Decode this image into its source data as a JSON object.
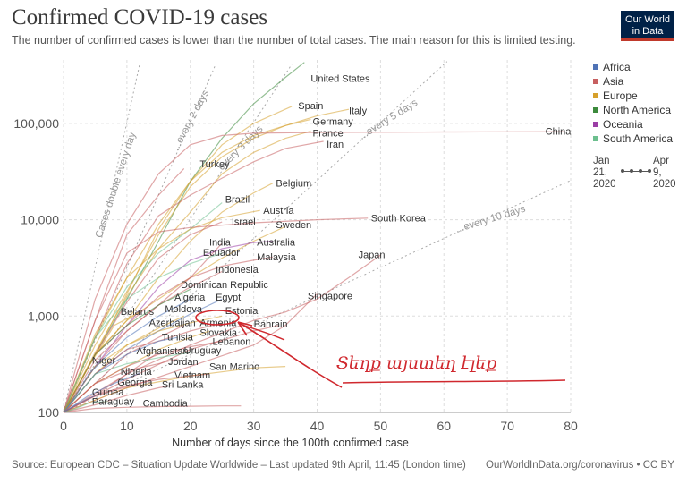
{
  "header": {
    "title": "Confirmed COVID-19 cases",
    "subtitle": "The number of confirmed cases is lower than the number of total cases. The main reason for this is limited testing."
  },
  "logo": {
    "line1": "Our World",
    "line2": "in Data"
  },
  "footer": {
    "source": "Source: European CDC – Situation Update Worldwide – Last updated 9th April, 11:45 (London time)",
    "link": "OurWorldInData.org/coronavirus • CC BY"
  },
  "legend": [
    {
      "label": "Africa",
      "color": "#4f73b6"
    },
    {
      "label": "Asia",
      "color": "#c75f60"
    },
    {
      "label": "Europe",
      "color": "#d6a02c"
    },
    {
      "label": "North America",
      "color": "#3c8a3c"
    },
    {
      "label": "Oceania",
      "color": "#9b3ea5"
    },
    {
      "label": "South America",
      "color": "#6cbf8e"
    }
  ],
  "timeline": {
    "start": "Jan\n21,\n2020",
    "end": "Apr\n9,\n2020"
  },
  "handwriting": "Տեղք այստեղ էլեք",
  "chart_data": {
    "type": "line",
    "title": "Confirmed COVID-19 cases",
    "xlabel": "Number of days since the 100th confirmed case",
    "ylabel": "",
    "xlim": [
      0,
      80
    ],
    "ylim": [
      100,
      300000
    ],
    "y_scale": "log",
    "x_ticks": [
      0,
      10,
      20,
      30,
      40,
      50,
      60,
      70,
      80
    ],
    "y_ticks": [
      100,
      1000,
      10000,
      100000
    ],
    "y_tick_labels": [
      "100",
      "1,000",
      "10,000",
      "100,000"
    ],
    "grid": true,
    "legend_position": "right",
    "reference_lines": [
      {
        "label": "Cases double every day",
        "doubling_days": 1
      },
      {
        "label": "...every 2 days",
        "doubling_days": 2
      },
      {
        "label": "every 3 days",
        "doubling_days": 3
      },
      {
        "label": "...every 5 days",
        "doubling_days": 5
      },
      {
        "label": "...every 10 days",
        "doubling_days": 10
      }
    ],
    "series": [
      {
        "name": "United States",
        "region": "North America",
        "x": [
          0,
          5,
          10,
          15,
          20,
          25,
          30,
          35,
          38
        ],
        "y": [
          100,
          400,
          1500,
          6000,
          25000,
          70000,
          160000,
          300000,
          430000
        ]
      },
      {
        "name": "Spain",
        "region": "Europe",
        "x": [
          0,
          5,
          10,
          15,
          20,
          25,
          30,
          36
        ],
        "y": [
          100,
          400,
          1700,
          8000,
          25000,
          60000,
          100000,
          150000
        ]
      },
      {
        "name": "Italy",
        "region": "Europe",
        "x": [
          0,
          5,
          10,
          15,
          20,
          25,
          30,
          35,
          40,
          45
        ],
        "y": [
          100,
          650,
          2500,
          9000,
          25000,
          50000,
          75000,
          95000,
          120000,
          140000
        ]
      },
      {
        "name": "Germany",
        "region": "Europe",
        "x": [
          0,
          5,
          10,
          15,
          20,
          25,
          30,
          35,
          39
        ],
        "y": [
          100,
          500,
          1800,
          7000,
          22000,
          45000,
          70000,
          95000,
          110000
        ]
      },
      {
        "name": "France",
        "region": "Europe",
        "x": [
          0,
          5,
          10,
          15,
          20,
          25,
          30,
          35,
          39
        ],
        "y": [
          100,
          420,
          1600,
          5000,
          12000,
          30000,
          50000,
          70000,
          83000
        ]
      },
      {
        "name": "Iran",
        "region": "Asia",
        "x": [
          0,
          5,
          10,
          15,
          20,
          25,
          30,
          35,
          41
        ],
        "y": [
          100,
          600,
          3500,
          11000,
          18000,
          27000,
          40000,
          55000,
          65000
        ]
      },
      {
        "name": "China",
        "region": "Asia",
        "x": [
          0,
          5,
          10,
          15,
          20,
          25,
          30,
          40,
          50,
          60,
          70,
          79
        ],
        "y": [
          100,
          1500,
          9000,
          30000,
          60000,
          75000,
          79000,
          80500,
          81000,
          81500,
          81800,
          82000
        ]
      },
      {
        "name": "Turkey",
        "region": "Asia",
        "x": [
          0,
          5,
          10,
          15,
          19
        ],
        "y": [
          100,
          900,
          7000,
          18000,
          34000
        ]
      },
      {
        "name": "Belgium",
        "region": "Europe",
        "x": [
          0,
          5,
          10,
          15,
          20,
          25,
          30,
          33
        ],
        "y": [
          100,
          400,
          900,
          2500,
          6000,
          12000,
          19000,
          24000
        ]
      },
      {
        "name": "Brazil",
        "region": "South America",
        "x": [
          0,
          5,
          10,
          15,
          20,
          25
        ],
        "y": [
          100,
          600,
          2000,
          4500,
          8000,
          15000
        ]
      },
      {
        "name": "Austria",
        "region": "Europe",
        "x": [
          0,
          5,
          10,
          15,
          20,
          25,
          31
        ],
        "y": [
          100,
          600,
          2500,
          5000,
          8000,
          10500,
          12500
        ]
      },
      {
        "name": "Israel",
        "region": "Asia",
        "x": [
          0,
          5,
          10,
          15,
          20,
          25
        ],
        "y": [
          100,
          400,
          1400,
          4000,
          7000,
          9500
        ]
      },
      {
        "name": "Sweden",
        "region": "Europe",
        "x": [
          0,
          5,
          10,
          15,
          20,
          25,
          30,
          35
        ],
        "y": [
          100,
          400,
          900,
          1500,
          2500,
          4000,
          6000,
          8500
        ]
      },
      {
        "name": "South Korea",
        "region": "Asia",
        "x": [
          0,
          5,
          10,
          15,
          20,
          30,
          40,
          48
        ],
        "y": [
          100,
          900,
          4500,
          7500,
          8300,
          9300,
          10000,
          10400
        ]
      },
      {
        "name": "India",
        "region": "Asia",
        "x": [
          0,
          5,
          10,
          15,
          20,
          25
        ],
        "y": [
          100,
          300,
          700,
          1300,
          2500,
          5700
        ]
      },
      {
        "name": "Australia",
        "region": "Oceania",
        "x": [
          0,
          5,
          10,
          15,
          20,
          25,
          30,
          33
        ],
        "y": [
          100,
          300,
          800,
          2000,
          3800,
          5000,
          5800,
          6000
        ]
      },
      {
        "name": "Ecuador",
        "region": "South America",
        "x": [
          0,
          5,
          10,
          15,
          20,
          25
        ],
        "y": [
          100,
          600,
          1500,
          2500,
          3500,
          4500
        ]
      },
      {
        "name": "Malaysia",
        "region": "Asia",
        "x": [
          0,
          5,
          10,
          15,
          20,
          25,
          30,
          33
        ],
        "y": [
          100,
          400,
          800,
          1600,
          2500,
          3300,
          3800,
          4100
        ]
      },
      {
        "name": "Indonesia",
        "region": "Asia",
        "x": [
          0,
          5,
          10,
          15,
          20,
          25
        ],
        "y": [
          100,
          350,
          700,
          1300,
          2000,
          2900
        ]
      },
      {
        "name": "Japan",
        "region": "Asia",
        "x": [
          0,
          10,
          20,
          30,
          35,
          40,
          45,
          50
        ],
        "y": [
          100,
          250,
          500,
          900,
          1100,
          1500,
          2500,
          4300
        ]
      },
      {
        "name": "Dominican Republic",
        "region": "North America",
        "x": [
          0,
          5,
          10,
          15,
          20
        ],
        "y": [
          100,
          400,
          800,
          1300,
          1900
        ]
      },
      {
        "name": "Algeria",
        "region": "Africa",
        "x": [
          0,
          5,
          10,
          15,
          20
        ],
        "y": [
          100,
          300,
          600,
          1000,
          1500
        ]
      },
      {
        "name": "Egypt",
        "region": "Africa",
        "x": [
          0,
          5,
          10,
          15,
          20,
          25
        ],
        "y": [
          100,
          250,
          450,
          700,
          1050,
          1500
        ]
      },
      {
        "name": "Singapore",
        "region": "Asia",
        "x": [
          0,
          10,
          20,
          30,
          35,
          40
        ],
        "y": [
          100,
          180,
          300,
          500,
          800,
          1700
        ]
      },
      {
        "name": "Belarus",
        "region": "Europe",
        "x": [
          0,
          4,
          8,
          12
        ],
        "y": [
          100,
          300,
          800,
          1100
        ]
      },
      {
        "name": "Moldova",
        "region": "Europe",
        "x": [
          0,
          5,
          10,
          15,
          19
        ],
        "y": [
          100,
          250,
          500,
          750,
          1000
        ]
      },
      {
        "name": "Estonia",
        "region": "Europe",
        "x": [
          0,
          5,
          10,
          15,
          20,
          25
        ],
        "y": [
          100,
          300,
          500,
          700,
          850,
          1000
        ]
      },
      {
        "name": "Azerbaijan",
        "region": "Asia",
        "x": [
          0,
          5,
          10,
          15,
          19
        ],
        "y": [
          100,
          200,
          400,
          600,
          800
        ]
      },
      {
        "name": "Armenia",
        "region": "Asia",
        "x": [
          0,
          5,
          10,
          15,
          20,
          25
        ],
        "y": [
          100,
          250,
          450,
          550,
          700,
          850
        ]
      },
      {
        "name": "Bahrain",
        "region": "Asia",
        "x": [
          0,
          10,
          20,
          30,
          34
        ],
        "y": [
          100,
          220,
          450,
          700,
          800
        ]
      },
      {
        "name": "Slovakia",
        "region": "Europe",
        "x": [
          0,
          5,
          10,
          15,
          20,
          23
        ],
        "y": [
          100,
          200,
          300,
          450,
          600,
          700
        ]
      },
      {
        "name": "Tunisia",
        "region": "Africa",
        "x": [
          0,
          5,
          10,
          15,
          18
        ],
        "y": [
          100,
          250,
          400,
          550,
          600
        ]
      },
      {
        "name": "Lebanon",
        "region": "Asia",
        "x": [
          0,
          5,
          10,
          15,
          20,
          25
        ],
        "y": [
          100,
          200,
          300,
          400,
          480,
          550
        ]
      },
      {
        "name": "Afghanistan",
        "region": "Asia",
        "x": [
          0,
          5,
          10,
          15
        ],
        "y": [
          100,
          150,
          250,
          420
        ]
      },
      {
        "name": "Uruguay",
        "region": "South America",
        "x": [
          0,
          5,
          10,
          15,
          20
        ],
        "y": [
          100,
          250,
          320,
          370,
          420
        ]
      },
      {
        "name": "Niger",
        "region": "Africa",
        "x": [
          0,
          2,
          4,
          6
        ],
        "y": [
          100,
          150,
          250,
          340
        ]
      },
      {
        "name": "Jordan",
        "region": "Asia",
        "x": [
          0,
          5,
          10,
          15,
          18
        ],
        "y": [
          100,
          200,
          270,
          320,
          360
        ]
      },
      {
        "name": "San Marino",
        "region": "Europe",
        "x": [
          0,
          10,
          20,
          30,
          35
        ],
        "y": [
          100,
          180,
          240,
          290,
          300
        ]
      },
      {
        "name": "Nigeria",
        "region": "Africa",
        "x": [
          0,
          4,
          8,
          12
        ],
        "y": [
          100,
          150,
          200,
          255
        ]
      },
      {
        "name": "Vietnam",
        "region": "Asia",
        "x": [
          0,
          5,
          10,
          15,
          20,
          23
        ],
        "y": [
          100,
          150,
          190,
          220,
          240,
          250
        ]
      },
      {
        "name": "Georgia",
        "region": "Asia",
        "x": [
          0,
          4,
          8,
          12
        ],
        "y": [
          100,
          140,
          170,
          200
        ]
      },
      {
        "name": "Sri Lanka",
        "region": "Asia",
        "x": [
          0,
          5,
          10,
          15,
          17
        ],
        "y": [
          100,
          120,
          150,
          180,
          190
        ]
      },
      {
        "name": "Guinea",
        "region": "Africa",
        "x": [
          0,
          2,
          4,
          6
        ],
        "y": [
          100,
          120,
          140,
          160
        ]
      },
      {
        "name": "Paraguay",
        "region": "South America",
        "x": [
          0,
          2,
          4,
          7
        ],
        "y": [
          100,
          110,
          125,
          130
        ]
      },
      {
        "name": "Cambodia",
        "region": "Asia",
        "x": [
          0,
          5,
          10,
          15,
          20,
          25,
          28
        ],
        "y": [
          100,
          110,
          113,
          115,
          116,
          117,
          117
        ]
      }
    ],
    "labels": [
      {
        "text": "United States",
        "x": 39,
        "y": 270000
      },
      {
        "text": "Spain",
        "x": 37,
        "y": 140000
      },
      {
        "text": "Italy",
        "x": 45,
        "y": 125000
      },
      {
        "text": "Germany",
        "x": 39.3,
        "y": 97000
      },
      {
        "text": "France",
        "x": 39.3,
        "y": 73000
      },
      {
        "text": "Iran",
        "x": 41.5,
        "y": 56000
      },
      {
        "text": "China",
        "x": 76,
        "y": 76000
      },
      {
        "text": "Turkey",
        "x": 21.5,
        "y": 35000
      },
      {
        "text": "Belgium",
        "x": 33.5,
        "y": 22000
      },
      {
        "text": "Brazil",
        "x": 25.5,
        "y": 15000
      },
      {
        "text": "Austria",
        "x": 31.5,
        "y": 11500
      },
      {
        "text": "Israel",
        "x": 26.5,
        "y": 8800
      },
      {
        "text": "Sweden",
        "x": 33.5,
        "y": 8200
      },
      {
        "text": "South Korea",
        "x": 48.5,
        "y": 9600
      },
      {
        "text": "India",
        "x": 23,
        "y": 5400
      },
      {
        "text": "Australia",
        "x": 30.5,
        "y": 5400
      },
      {
        "text": "Ecuador",
        "x": 22,
        "y": 4200
      },
      {
        "text": "Malaysia",
        "x": 30.5,
        "y": 3800
      },
      {
        "text": "Indonesia",
        "x": 24,
        "y": 2800
      },
      {
        "text": "Japan",
        "x": 46.5,
        "y": 4000
      },
      {
        "text": "Dominican Republic",
        "x": 18.5,
        "y": 1950
      },
      {
        "text": "Algeria",
        "x": 17.5,
        "y": 1450
      },
      {
        "text": "Egypt",
        "x": 24,
        "y": 1450
      },
      {
        "text": "Singapore",
        "x": 38.5,
        "y": 1500
      },
      {
        "text": "Belarus",
        "x": 9,
        "y": 1030
      },
      {
        "text": "Moldova",
        "x": 16,
        "y": 1100
      },
      {
        "text": "Estonia",
        "x": 25.5,
        "y": 1050
      },
      {
        "text": "Azerbaijan",
        "x": 13.5,
        "y": 790
      },
      {
        "text": "Armenia",
        "x": 21.5,
        "y": 790
      },
      {
        "text": "Bahrain",
        "x": 30,
        "y": 760
      },
      {
        "text": "Slovakia",
        "x": 21.5,
        "y": 620
      },
      {
        "text": "Tunisia",
        "x": 15.5,
        "y": 560
      },
      {
        "text": "Lebanon",
        "x": 23.5,
        "y": 500
      },
      {
        "text": "Afghanistan",
        "x": 11.5,
        "y": 400
      },
      {
        "text": "Uruguay",
        "x": 19,
        "y": 405
      },
      {
        "text": "Niger",
        "x": 4.5,
        "y": 320
      },
      {
        "text": "Jordan",
        "x": 16.5,
        "y": 310
      },
      {
        "text": "San Marino",
        "x": 23,
        "y": 275
      },
      {
        "text": "Nigeria",
        "x": 9,
        "y": 245
      },
      {
        "text": "Vietnam",
        "x": 17.5,
        "y": 225
      },
      {
        "text": "Georgia",
        "x": 8.5,
        "y": 190
      },
      {
        "text": "Sri Lanka",
        "x": 15.5,
        "y": 180
      },
      {
        "text": "Guinea",
        "x": 4.5,
        "y": 150
      },
      {
        "text": "Paraguay",
        "x": 4.5,
        "y": 120
      },
      {
        "text": "Cambodia",
        "x": 12.5,
        "y": 115
      }
    ]
  }
}
